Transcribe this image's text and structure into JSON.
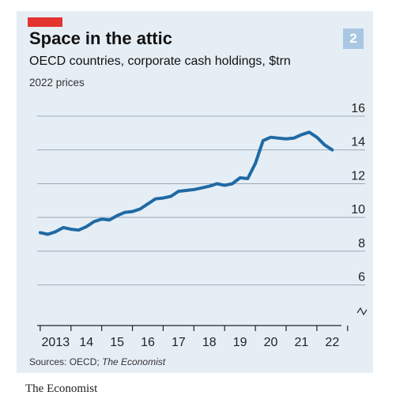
{
  "header": {
    "title": "Space in the attic",
    "subtitle": "OECD countries, corporate cash holdings, $trn",
    "subtitle2": "2022 prices",
    "badge": "2"
  },
  "source": {
    "prefix": "Sources: OECD; ",
    "italic": "The Economist"
  },
  "footer": "The Economist",
  "colors": {
    "background": "#e6eef5",
    "line": "#1f6aa5",
    "accent": "#e3342f",
    "badge": "#a9c7e3"
  },
  "chart_data": {
    "type": "line",
    "title": "Space in the attic",
    "subtitle": "OECD countries, corporate cash holdings, $trn",
    "ylabel": "",
    "xlabel": "",
    "ylim": [
      5,
      16
    ],
    "xlim": [
      2012.9,
      2022.8
    ],
    "yticks": [
      6,
      8,
      10,
      12,
      14,
      16
    ],
    "ytick_labels": [
      "6",
      "8",
      "10",
      "12",
      "14",
      "16"
    ],
    "xtick_labels": [
      "2013",
      "14",
      "15",
      "16",
      "17",
      "18",
      "19",
      "20",
      "21",
      "22"
    ],
    "grid": true,
    "axis_break": true,
    "series": [
      {
        "x": [
          2013.0,
          2013.25,
          2013.5,
          2013.75,
          2014.0,
          2014.25,
          2014.5,
          2014.75,
          2015.0,
          2015.25,
          2015.5,
          2015.75,
          2016.0,
          2016.25,
          2016.5,
          2016.75,
          2017.0,
          2017.25,
          2017.5,
          2017.75,
          2018.0,
          2018.25,
          2018.5,
          2018.75,
          2019.0,
          2019.25,
          2019.5,
          2019.75,
          2020.0,
          2020.25,
          2020.5,
          2020.75,
          2021.0,
          2021.25,
          2021.5,
          2021.75,
          2022.0,
          2022.25,
          2022.5
        ],
        "values": [
          9.1,
          9.0,
          9.15,
          9.4,
          9.3,
          9.25,
          9.45,
          9.75,
          9.9,
          9.85,
          10.1,
          10.3,
          10.35,
          10.5,
          10.8,
          11.1,
          11.15,
          11.25,
          11.55,
          11.6,
          11.65,
          11.75,
          11.85,
          12.0,
          11.9,
          12.0,
          12.35,
          12.3,
          13.2,
          14.55,
          14.75,
          14.7,
          14.65,
          14.7,
          14.9,
          15.05,
          14.75,
          14.3,
          14.0
        ]
      }
    ]
  }
}
